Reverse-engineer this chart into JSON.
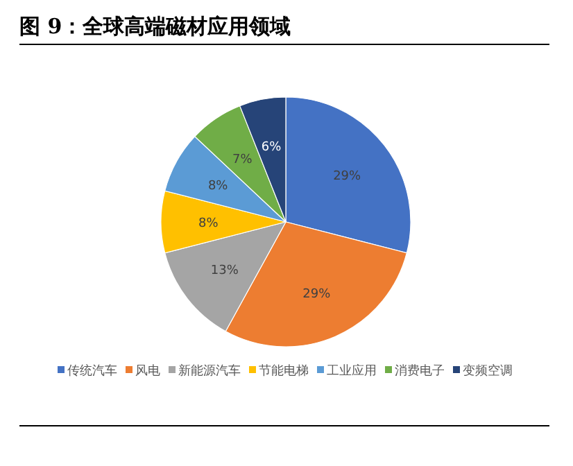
{
  "chart_data": {
    "type": "pie",
    "title": "图 9：全球高端磁材应用领域",
    "categories": [
      "传统汽车",
      "风电",
      "新能源汽车",
      "节能电梯",
      "工业应用",
      "消费电子",
      "变频空调"
    ],
    "values": [
      29,
      29,
      13,
      8,
      8,
      7,
      6
    ],
    "value_labels": [
      "29%",
      "29%",
      "13%",
      "8%",
      "8%",
      "7%",
      "6%"
    ],
    "colors": [
      "#4472c4",
      "#ed7d31",
      "#a5a5a5",
      "#ffc000",
      "#5b9bd5",
      "#70ad47",
      "#264478"
    ],
    "legend": "bottom"
  }
}
